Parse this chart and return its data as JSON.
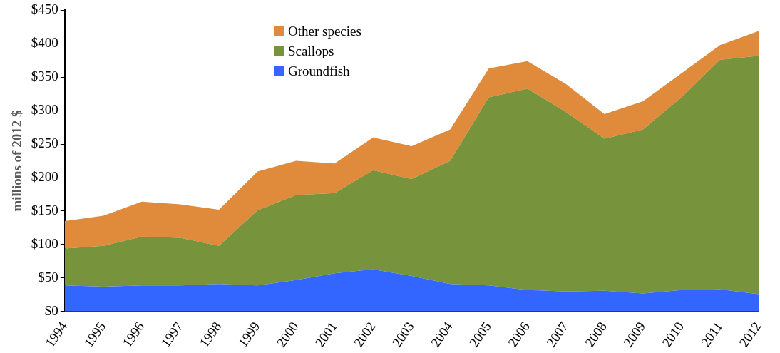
{
  "chart_data": {
    "type": "area",
    "stacked": true,
    "ylabel": "millions of 2012 $",
    "legend": "top",
    "grid": false,
    "categories": [
      "1994",
      "1995",
      "1996",
      "1997",
      "1998",
      "1999",
      "2000",
      "2001",
      "2002",
      "2003",
      "2004",
      "2005",
      "2006",
      "2007",
      "2008",
      "2009",
      "2010",
      "2011",
      "2012"
    ],
    "ylim": [
      0,
      450
    ],
    "yticks": [
      {
        "value": 0,
        "label": "$0"
      },
      {
        "value": 50,
        "label": "$50"
      },
      {
        "value": 100,
        "label": "$100"
      },
      {
        "value": 150,
        "label": "$150"
      },
      {
        "value": 200,
        "label": "$200"
      },
      {
        "value": 250,
        "label": "$250"
      },
      {
        "value": 300,
        "label": "$300"
      },
      {
        "value": 350,
        "label": "$350"
      },
      {
        "value": 400,
        "label": "$400"
      },
      {
        "value": 450,
        "label": "$450"
      }
    ],
    "series": [
      {
        "name": "Groundfish",
        "color": "#3366ff",
        "values": [
          39,
          37,
          39,
          39,
          41,
          39,
          47,
          57,
          63,
          53,
          41,
          39,
          32,
          30,
          31,
          27,
          32,
          33,
          26
        ]
      },
      {
        "name": "Scallops",
        "color": "#77933c",
        "values": [
          55,
          61,
          73,
          71,
          57,
          112,
          127,
          120,
          148,
          145,
          184,
          281,
          301,
          268,
          227,
          245,
          288,
          343,
          356
        ]
      },
      {
        "name": "Other species",
        "color": "#e08a3c",
        "values": [
          41,
          45,
          52,
          50,
          54,
          58,
          51,
          44,
          49,
          49,
          47,
          43,
          41,
          42,
          37,
          42,
          36,
          22,
          37
        ]
      }
    ]
  }
}
